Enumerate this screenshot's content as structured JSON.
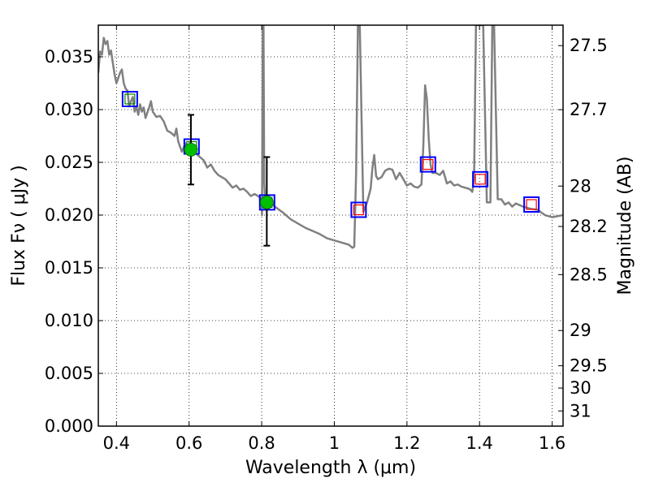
{
  "chart_data": {
    "type": "line",
    "xlabel": "Wavelength  λ (μm)",
    "ylabel": "Flux  Fν  ( μJy )",
    "ylabel_right": "Magnitude (AB)",
    "xlim": [
      0.35,
      1.63
    ],
    "ylim": [
      0.0,
      0.038
    ],
    "grid": true,
    "x_ticks": [
      0.4,
      0.6,
      0.8,
      1.0,
      1.2,
      1.4,
      1.6
    ],
    "x_tick_labels": [
      "0.4",
      "0.6",
      "0.8",
      "1",
      "1.2",
      "1.4",
      "1.6"
    ],
    "y_ticks": [
      0.0,
      0.005,
      0.01,
      0.015,
      0.02,
      0.025,
      0.03,
      0.035
    ],
    "y_tick_labels": [
      "0.000",
      "0.005",
      "0.010",
      "0.015",
      "0.020",
      "0.025",
      "0.030",
      "0.035"
    ],
    "right_ticks": [
      {
        "label": "27.5",
        "flux": 0.03606
      },
      {
        "label": "27.7",
        "flux": 0.02999
      },
      {
        "label": "28",
        "flux": 0.02275
      },
      {
        "label": "28.2",
        "flux": 0.01892
      },
      {
        "label": "28.5",
        "flux": 0.01436
      },
      {
        "label": "29",
        "flux": 0.00906
      },
      {
        "label": "29.5",
        "flux": 0.00572
      },
      {
        "label": "30",
        "flux": 0.00361
      },
      {
        "label": "31",
        "flux": 0.00144
      }
    ],
    "series": [
      {
        "color": "#808080",
        "x": [
          0.35,
          0.355,
          0.36,
          0.365,
          0.37,
          0.375,
          0.38,
          0.385,
          0.39,
          0.395,
          0.4,
          0.405,
          0.41,
          0.415,
          0.42,
          0.425,
          0.43,
          0.435,
          0.44,
          0.445,
          0.45,
          0.455,
          0.46,
          0.465,
          0.47,
          0.475,
          0.48,
          0.485,
          0.49,
          0.495,
          0.5,
          0.51,
          0.52,
          0.53,
          0.54,
          0.55,
          0.56,
          0.565,
          0.57,
          0.58,
          0.59,
          0.6,
          0.61,
          0.62,
          0.63,
          0.64,
          0.65,
          0.66,
          0.67,
          0.68,
          0.69,
          0.7,
          0.71,
          0.72,
          0.73,
          0.74,
          0.75,
          0.76,
          0.77,
          0.78,
          0.79,
          0.8,
          0.801,
          0.803,
          0.805,
          0.807,
          0.81,
          0.82,
          0.83,
          0.84,
          0.86,
          0.88,
          0.9,
          0.92,
          0.94,
          0.96,
          0.98,
          1.0,
          1.02,
          1.04,
          1.05,
          1.055,
          1.06,
          1.065,
          1.07,
          1.08,
          1.09,
          1.1,
          1.105,
          1.11,
          1.115,
          1.12,
          1.13,
          1.14,
          1.15,
          1.16,
          1.17,
          1.18,
          1.19,
          1.2,
          1.21,
          1.22,
          1.23,
          1.24,
          1.245,
          1.25,
          1.255,
          1.26,
          1.265,
          1.27,
          1.28,
          1.29,
          1.3,
          1.31,
          1.32,
          1.33,
          1.34,
          1.35,
          1.36,
          1.37,
          1.375,
          1.38,
          1.385,
          1.39,
          1.395,
          1.4,
          1.41,
          1.42,
          1.425,
          1.43,
          1.435,
          1.44,
          1.45,
          1.46,
          1.47,
          1.48,
          1.49,
          1.5,
          1.52,
          1.54,
          1.56,
          1.58,
          1.6,
          1.63
        ],
        "y": [
          0.0335,
          0.0355,
          0.0352,
          0.0368,
          0.0362,
          0.0365,
          0.0352,
          0.0356,
          0.0344,
          0.0333,
          0.0325,
          0.033,
          0.0335,
          0.0338,
          0.0325,
          0.032,
          0.0318,
          0.0303,
          0.0308,
          0.0312,
          0.0298,
          0.0303,
          0.0295,
          0.0305,
          0.0298,
          0.0302,
          0.0292,
          0.0297,
          0.0302,
          0.0308,
          0.0298,
          0.0293,
          0.0294,
          0.0289,
          0.028,
          0.0278,
          0.0275,
          0.0282,
          0.027,
          0.026,
          0.0268,
          0.0265,
          0.0262,
          0.0258,
          0.0255,
          0.0252,
          0.0245,
          0.0248,
          0.0242,
          0.0238,
          0.0236,
          0.0234,
          0.023,
          0.0226,
          0.0228,
          0.0224,
          0.0225,
          0.0222,
          0.0218,
          0.022,
          0.0218,
          0.0215,
          0.02,
          0.038,
          0.038,
          0.023,
          0.0212,
          0.0213,
          0.021,
          0.0207,
          0.0202,
          0.0196,
          0.0192,
          0.0188,
          0.0185,
          0.0182,
          0.0178,
          0.0176,
          0.0174,
          0.0172,
          0.0169,
          0.017,
          0.024,
          0.038,
          0.038,
          0.0203,
          0.0212,
          0.0225,
          0.0245,
          0.0257,
          0.0237,
          0.0234,
          0.0236,
          0.0242,
          0.0244,
          0.0243,
          0.0234,
          0.024,
          0.0234,
          0.0228,
          0.023,
          0.0227,
          0.0226,
          0.0229,
          0.0265,
          0.0323,
          0.031,
          0.0272,
          0.0248,
          0.024,
          0.024,
          0.0238,
          0.0242,
          0.023,
          0.0232,
          0.0228,
          0.0229,
          0.0227,
          0.0226,
          0.0225,
          0.0224,
          0.0222,
          0.0235,
          0.038,
          0.038,
          0.038,
          0.038,
          0.0212,
          0.0212,
          0.0212,
          0.038,
          0.038,
          0.0215,
          0.0215,
          0.021,
          0.0212,
          0.0208,
          0.0211,
          0.0208,
          0.0206,
          0.0205,
          0.02,
          0.0198,
          0.02
        ]
      }
    ],
    "square_markers": [
      {
        "x": 0.437,
        "y": 0.031,
        "fill": "#008000"
      },
      {
        "x": 0.607,
        "y": 0.0265,
        "fill": "#008000"
      },
      {
        "x": 0.815,
        "y": 0.0212,
        "fill": "#008000"
      },
      {
        "x": 1.067,
        "y": 0.0205,
        "fill": "#ff0000"
      },
      {
        "x": 1.258,
        "y": 0.0248,
        "fill": "#ff0000"
      },
      {
        "x": 1.402,
        "y": 0.0234,
        "fill": "#ff0000"
      },
      {
        "x": 1.543,
        "y": 0.021,
        "fill": "#ff0000"
      }
    ],
    "observed_points": [
      {
        "x": 0.605,
        "y": 0.0262,
        "yerr_low": 0.0229,
        "yerr_high": 0.0295,
        "color": "#00bf00"
      },
      {
        "x": 0.814,
        "y": 0.0212,
        "yerr_low": 0.0171,
        "yerr_high": 0.0255,
        "color": "#00bf00"
      }
    ]
  }
}
